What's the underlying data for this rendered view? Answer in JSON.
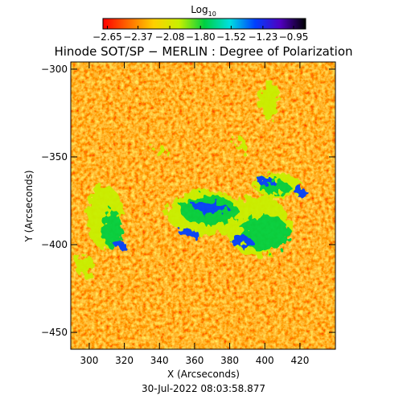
{
  "chart_data": {
    "type": "image",
    "title": "Hinode SOT/SP − MERLIN : Degree of Polarization",
    "colorbar_label": "Log",
    "colorbar_label_subscript": "10",
    "colormap": [
      "#ff0000",
      "#ff6a00",
      "#ffd000",
      "#c8f000",
      "#00d040",
      "#00e0e0",
      "#0040ff",
      "#5000c0",
      "#000000"
    ],
    "clim": [
      -2.69,
      -0.84
    ],
    "cticks": [
      {
        "value": -2.65,
        "label": "−2.65"
      },
      {
        "value": -2.37,
        "label": "−2.37"
      },
      {
        "value": -2.08,
        "label": "−2.08"
      },
      {
        "value": -1.8,
        "label": "−1.80"
      },
      {
        "value": -1.52,
        "label": "−1.52"
      },
      {
        "value": -1.23,
        "label": "−1.23"
      },
      {
        "value": -0.95,
        "label": "−0.95"
      }
    ],
    "x_label": "X (Arcseconds)",
    "y_label": "Y (Arcseconds)",
    "xlim": [
      289.5,
      440.2
    ],
    "ylim": [
      -459.6,
      -295.9
    ],
    "xticks": [
      300,
      320,
      340,
      360,
      380,
      400,
      420
    ],
    "yticks": [
      {
        "value": -450,
        "label": "−450"
      },
      {
        "value": -400,
        "label": "−400"
      },
      {
        "value": -350,
        "label": "−350"
      },
      {
        "value": -300,
        "label": "−300"
      }
    ],
    "date": "30-Jul-2022 08:03:58.877"
  }
}
